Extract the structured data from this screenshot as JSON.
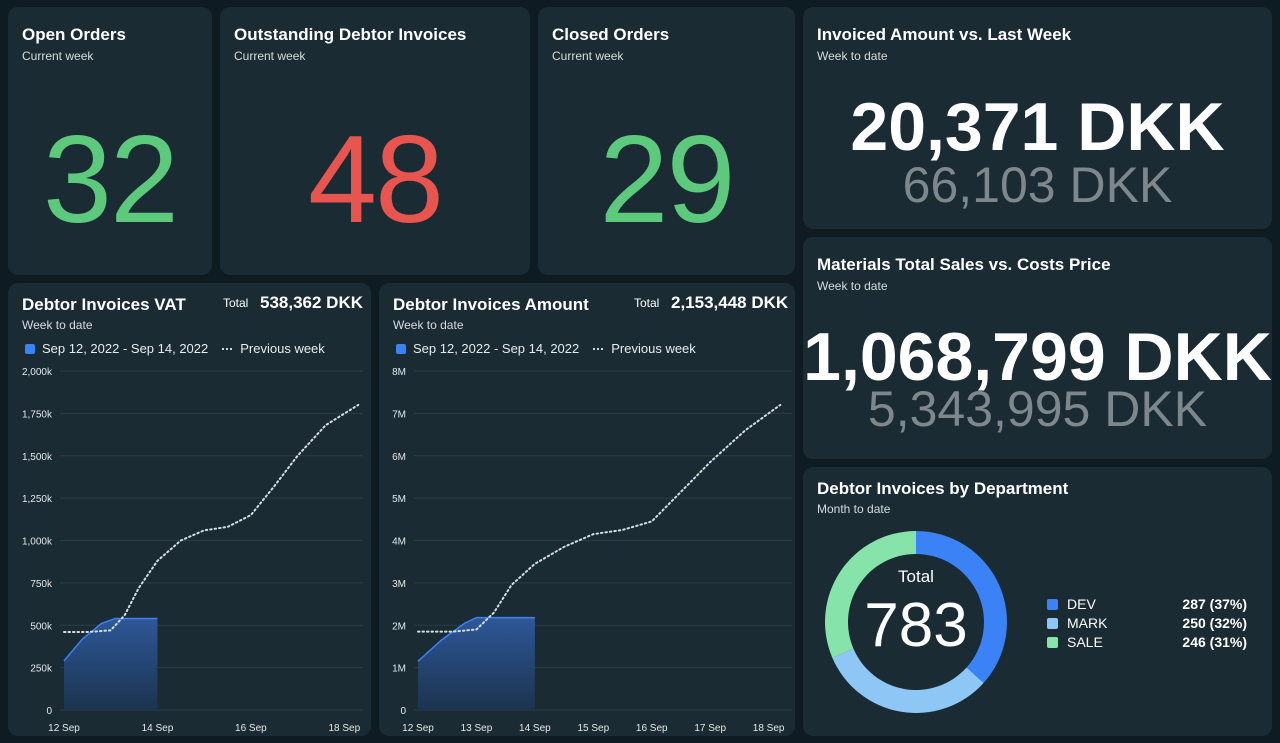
{
  "colors": {
    "background": "#0e1b22",
    "card": "#1a2b33",
    "green": "#5cc97c",
    "red": "#e8554f",
    "blue": "#3b82f6",
    "light_blue": "#8ec7f5",
    "mint": "#86e3aa",
    "muted": "#7d878c"
  },
  "open_orders": {
    "title": "Open Orders",
    "subtitle": "Current week",
    "value": "32"
  },
  "outstanding": {
    "title": "Outstanding Debtor Invoices",
    "subtitle": "Current week",
    "value": "48"
  },
  "closed_orders": {
    "title": "Closed Orders",
    "subtitle": "Current week",
    "value": "29"
  },
  "invoiced": {
    "title": "Invoiced Amount vs. Last Week",
    "subtitle": "Week to date",
    "current": "20,371 DKK",
    "previous": "66,103 DKK"
  },
  "materials": {
    "title": "Materials Total Sales vs. Costs Price",
    "subtitle": "Week to date",
    "current": "1,068,799 DKK",
    "previous": "5,343,995 DKK"
  },
  "vat": {
    "title": "Debtor Invoices VAT",
    "subtitle": "Week to date",
    "total_label": "Total",
    "total_value": "538,362 DKK",
    "legend_current": "Sep 12, 2022 - Sep 14, 2022",
    "legend_previous": "Previous week"
  },
  "amount": {
    "title": "Debtor Invoices Amount",
    "subtitle": "Week to date",
    "total_label": "Total",
    "total_value": "2,153,448 DKK",
    "legend_current": "Sep 12, 2022 - Sep 14, 2022",
    "legend_previous": "Previous week"
  },
  "department": {
    "title": "Debtor Invoices by Department",
    "subtitle": "Month to date",
    "total_label": "Total",
    "total_value": "783",
    "rows": [
      {
        "name": "DEV",
        "value": "287 (37%)",
        "color": "#3b82f6"
      },
      {
        "name": "MARK",
        "value": "250 (32%)",
        "color": "#8ec7f5"
      },
      {
        "name": "SALE",
        "value": "246 (31%)",
        "color": "#86e3aa"
      }
    ]
  },
  "chart_data": [
    {
      "type": "area",
      "title": "Debtor Invoices VAT",
      "y_ticks": [
        "0",
        "250k",
        "500k",
        "750k",
        "1,000k",
        "1,250k",
        "1,500k",
        "1,750k",
        "2,000k"
      ],
      "x_ticks": [
        "12 Sep",
        "14 Sep",
        "16 Sep",
        "18 Sep"
      ],
      "ylim": [
        0,
        2000000
      ],
      "series": [
        {
          "name": "Sep 12, 2022 - Sep 14, 2022",
          "style": "area",
          "points": [
            [
              12.0,
              290000
            ],
            [
              12.4,
              420000
            ],
            [
              12.8,
              510000
            ],
            [
              13.1,
              540000
            ],
            [
              14.0,
              540000
            ]
          ]
        },
        {
          "name": "Previous week",
          "style": "dotted",
          "points": [
            [
              12.0,
              460000
            ],
            [
              12.5,
              460000
            ],
            [
              13.0,
              470000
            ],
            [
              13.3,
              560000
            ],
            [
              13.6,
              720000
            ],
            [
              14.0,
              880000
            ],
            [
              14.5,
              1000000
            ],
            [
              15.0,
              1060000
            ],
            [
              15.5,
              1080000
            ],
            [
              16.0,
              1150000
            ],
            [
              16.5,
              1320000
            ],
            [
              17.0,
              1500000
            ],
            [
              17.6,
              1680000
            ],
            [
              18.3,
              1800000
            ]
          ]
        }
      ]
    },
    {
      "type": "area",
      "title": "Debtor Invoices Amount",
      "y_ticks": [
        "0",
        "1M",
        "2M",
        "3M",
        "4M",
        "5M",
        "6M",
        "7M",
        "8M"
      ],
      "x_ticks": [
        "12 Sep",
        "13 Sep",
        "14 Sep",
        "15 Sep",
        "16 Sep",
        "17 Sep",
        "18 Sep"
      ],
      "ylim": [
        0,
        8000000
      ],
      "series": [
        {
          "name": "Sep 12, 2022 - Sep 14, 2022",
          "style": "area",
          "points": [
            [
              12.0,
              1150000
            ],
            [
              12.4,
              1650000
            ],
            [
              12.8,
              2050000
            ],
            [
              13.0,
              2180000
            ],
            [
              14.0,
              2180000
            ]
          ]
        },
        {
          "name": "Previous week",
          "style": "dotted",
          "points": [
            [
              12.0,
              1850000
            ],
            [
              12.6,
              1850000
            ],
            [
              13.0,
              1900000
            ],
            [
              13.3,
              2300000
            ],
            [
              13.6,
              2950000
            ],
            [
              14.0,
              3450000
            ],
            [
              14.5,
              3850000
            ],
            [
              15.0,
              4150000
            ],
            [
              15.5,
              4250000
            ],
            [
              16.0,
              4450000
            ],
            [
              16.5,
              5150000
            ],
            [
              17.0,
              5850000
            ],
            [
              17.6,
              6600000
            ],
            [
              18.2,
              7200000
            ]
          ]
        }
      ]
    },
    {
      "type": "pie",
      "title": "Debtor Invoices by Department",
      "categories": [
        "DEV",
        "MARK",
        "SALE"
      ],
      "values": [
        287,
        250,
        246
      ],
      "total": 783
    }
  ]
}
